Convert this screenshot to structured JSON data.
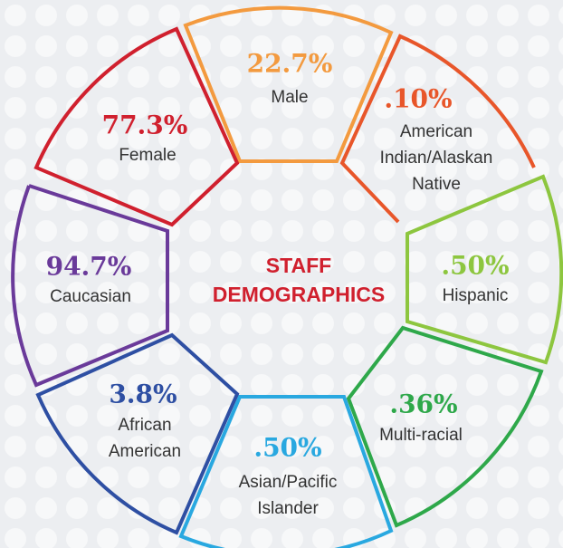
{
  "title": [
    "STAFF",
    "DEMOGRAPHICS"
  ],
  "segments": [
    {
      "value": "22.7%",
      "label": [
        "Male"
      ],
      "color": "#f39a3f"
    },
    {
      "value": ".10%",
      "label": [
        "American",
        "Indian/Alaskan",
        "Native"
      ],
      "color": "#e8562a"
    },
    {
      "value": ".50%",
      "label": [
        "Hispanic"
      ],
      "color": "#8dc63f"
    },
    {
      "value": ".36%",
      "label": [
        "Multi-racial"
      ],
      "color": "#2ea84a"
    },
    {
      "value": ".50%",
      "label": [
        "Asian/Pacific",
        "Islander"
      ],
      "color": "#29a8e0"
    },
    {
      "value": "3.8%",
      "label": [
        "African",
        "American"
      ],
      "color": "#2e4fa3"
    },
    {
      "value": "94.7%",
      "label": [
        "Caucasian"
      ],
      "color": "#6a3a9a"
    },
    {
      "value": "77.3%",
      "label": [
        "Female"
      ],
      "color": "#d0202e"
    }
  ]
}
